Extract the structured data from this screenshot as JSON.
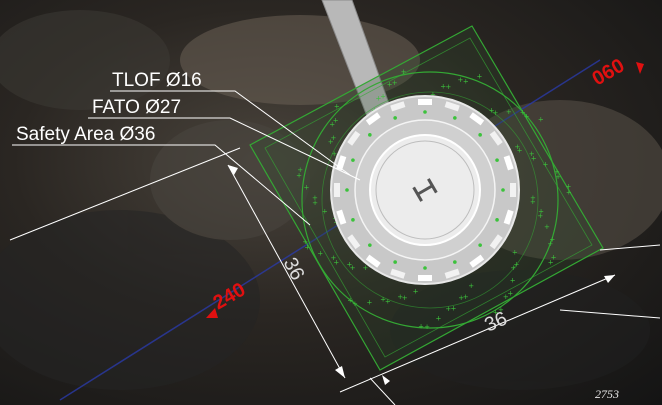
{
  "labels": {
    "tlof": "TLOF Ø16",
    "fato": "FATO Ø27",
    "safety_area": "Safety Area Ø36"
  },
  "dimensions": {
    "side_left": "36",
    "side_bottom": "36"
  },
  "headings": {
    "ne": "060",
    "sw": "240"
  },
  "pad_marking": "H",
  "sheet_number": "2753",
  "colors": {
    "label_text": "#ffffff",
    "heading_text": "#e01010",
    "safety_lines": "#34a834",
    "centerline": "#2a3aa8",
    "pad_fill": "#c8c8c8",
    "fato_fill": "#d8d8d8",
    "tlof_fill": "#ececec"
  }
}
